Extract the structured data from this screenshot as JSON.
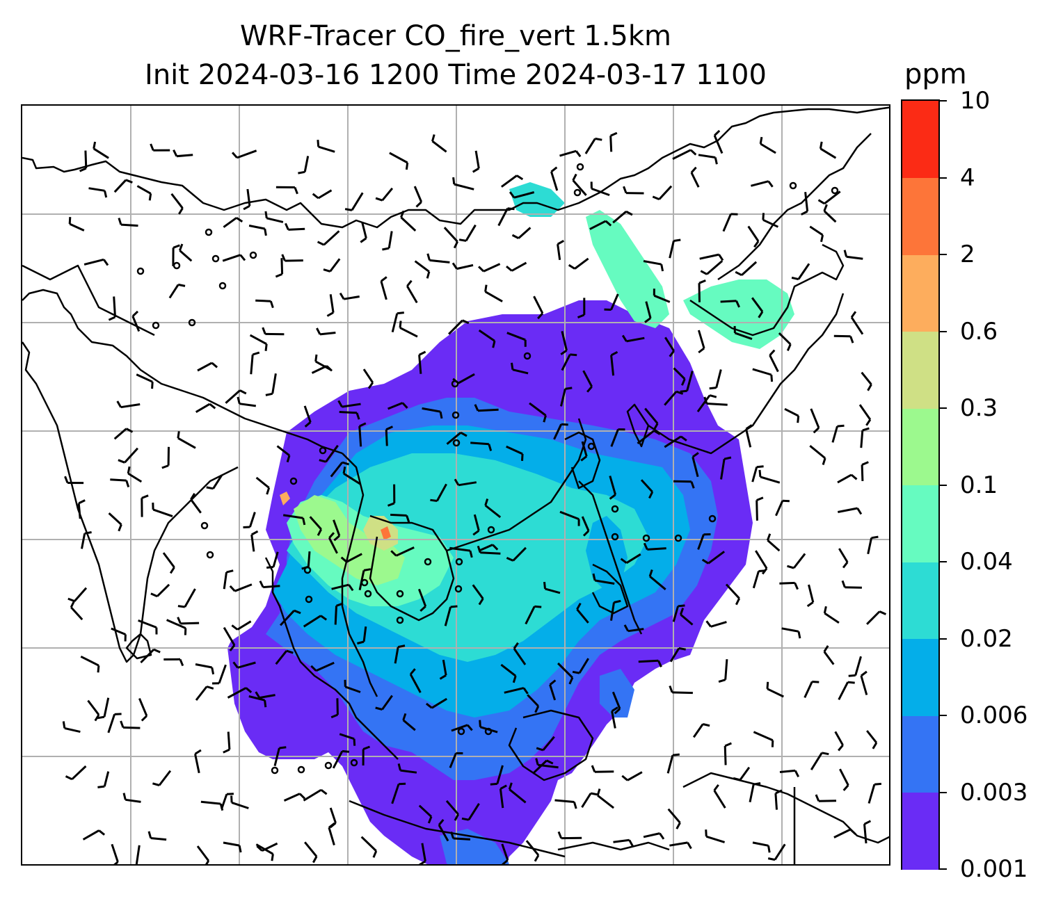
{
  "title": {
    "line1": "WRF-Tracer CO_fire_vert 1.5km",
    "line2": "Init 2024-03-16 1200 Time 2024-03-17 1100"
  },
  "colorbar": {
    "unit": "ppm",
    "levels": [
      "0.001",
      "0.003",
      "0.006",
      "0.02",
      "0.04",
      "0.1",
      "0.3",
      "0.6",
      "2",
      "4",
      "10"
    ],
    "colors": [
      "#6a2cf5",
      "#3474f4",
      "#04aee9",
      "#2ddcd4",
      "#66fbc0",
      "#9cf98e",
      "#cfe085",
      "#fdad5d",
      "#fd7539",
      "#fb2b15"
    ]
  },
  "map": {
    "gridlines": "on",
    "layers": [
      "coastlines",
      "borders",
      "wind-barbs",
      "calm-circles",
      "co-tracer-field"
    ]
  }
}
